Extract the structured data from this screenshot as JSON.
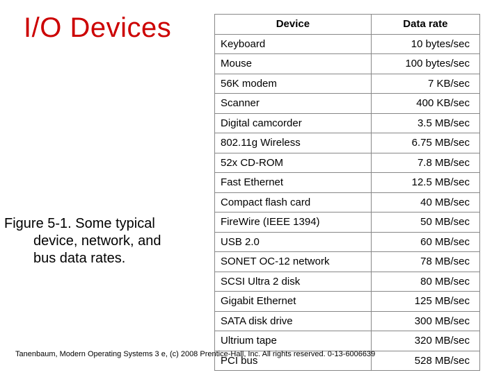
{
  "title": "I/O Devices",
  "caption_line1": "Figure 5-1. Some typical",
  "caption_line2": "device, network, and",
  "caption_line3": "bus data rates.",
  "footer": "Tanenbaum, Modern Operating Systems 3 e, (c) 2008 Prentice-Hall, Inc. All rights reserved. 0-13-6006639",
  "table": {
    "header_device": "Device",
    "header_rate": "Data rate",
    "rows": [
      {
        "device": "Keyboard",
        "rate": "10 bytes/sec"
      },
      {
        "device": "Mouse",
        "rate": "100 bytes/sec"
      },
      {
        "device": "56K modem",
        "rate": "7 KB/sec"
      },
      {
        "device": "Scanner",
        "rate": "400 KB/sec"
      },
      {
        "device": "Digital camcorder",
        "rate": "3.5 MB/sec"
      },
      {
        "device": "802.11g Wireless",
        "rate": "6.75 MB/sec"
      },
      {
        "device": "52x CD-ROM",
        "rate": "7.8 MB/sec"
      },
      {
        "device": "Fast Ethernet",
        "rate": "12.5 MB/sec"
      },
      {
        "device": "Compact flash card",
        "rate": "40 MB/sec"
      },
      {
        "device": "FireWire (IEEE 1394)",
        "rate": "50 MB/sec"
      },
      {
        "device": "USB 2.0",
        "rate": "60 MB/sec"
      },
      {
        "device": "SONET OC-12 network",
        "rate": "78 MB/sec"
      },
      {
        "device": "SCSI Ultra 2 disk",
        "rate": "80 MB/sec"
      },
      {
        "device": "Gigabit Ethernet",
        "rate": "125 MB/sec"
      },
      {
        "device": "SATA disk drive",
        "rate": "300 MB/sec"
      },
      {
        "device": "Ultrium tape",
        "rate": "320 MB/sec"
      },
      {
        "device": "PCI bus",
        "rate": "528 MB/sec"
      }
    ]
  },
  "colors": {
    "title": "#cc0000",
    "text": "#000000",
    "border": "#878787",
    "background": "#ffffff"
  }
}
